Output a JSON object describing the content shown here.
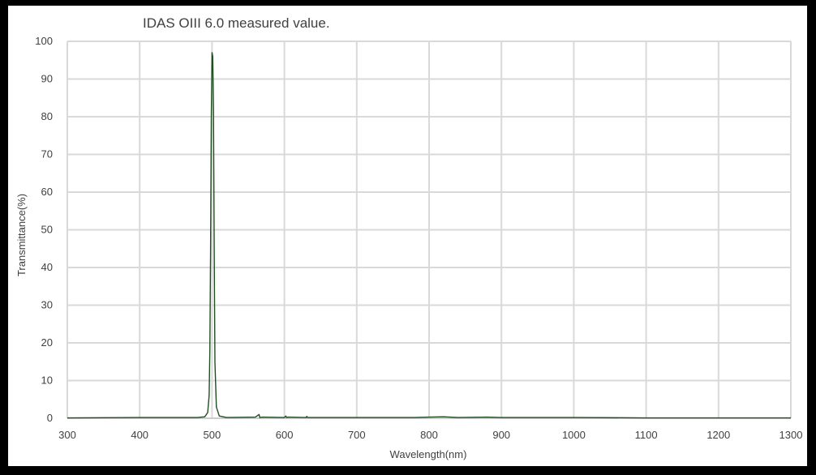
{
  "chart_data": {
    "type": "line",
    "title": "IDAS  OIII 6.0  measured value.",
    "xlabel": "Wavelength(nm)",
    "ylabel": "Transmittance(%)",
    "xlim": [
      300,
      1300
    ],
    "ylim": [
      0,
      100
    ],
    "xticks": [
      300,
      400,
      500,
      600,
      700,
      800,
      900,
      1000,
      1100,
      1200,
      1300
    ],
    "yticks": [
      0,
      10,
      20,
      30,
      40,
      50,
      60,
      70,
      80,
      90,
      100
    ],
    "grid": true,
    "legend": "none",
    "line_color": "#1f4e20",
    "series": [
      {
        "x": [
          300,
          400,
          480,
          490,
          494,
          496,
          497,
          498,
          499,
          500,
          501,
          502,
          503,
          504,
          506,
          510,
          520,
          560,
          565,
          566,
          570,
          600,
          602,
          603,
          605,
          630,
          631,
          632,
          700,
          780,
          800,
          820,
          840,
          880,
          900,
          1000,
          1100,
          1200,
          1300
        ],
        "y": [
          0.1,
          0.2,
          0.2,
          0.4,
          1.5,
          6,
          18,
          45,
          80,
          97,
          96,
          82,
          45,
          15,
          3,
          0.6,
          0.2,
          0.3,
          1.0,
          0.2,
          0.3,
          0.2,
          0.6,
          0.2,
          0.3,
          0.2,
          0.5,
          0.2,
          0.2,
          0.2,
          0.3,
          0.4,
          0.2,
          0.3,
          0.2,
          0.2,
          0.1,
          0.1,
          0.1
        ]
      }
    ]
  }
}
